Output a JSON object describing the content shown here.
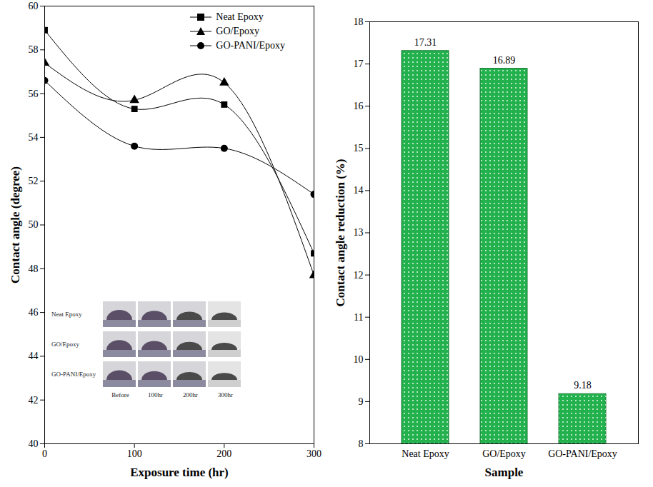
{
  "chart_data": [
    {
      "type": "line",
      "x_label": "Exposure time (hr)",
      "y_label": "Contact angle (degree)",
      "x": [
        0,
        100,
        200,
        300
      ],
      "series": [
        {
          "name": "Neat Epoxy",
          "color": "#000000",
          "marker": "square",
          "line_style": "solid",
          "values": [
            58.9,
            55.3,
            55.5,
            48.7
          ]
        },
        {
          "name": "GO/Epoxy",
          "color": "#000000",
          "marker": "triangle",
          "line_style": "solid",
          "values": [
            57.4,
            55.7,
            56.5,
            47.7
          ]
        },
        {
          "name": "GO-PANI/Epoxy",
          "color": "#000000",
          "marker": "circle",
          "line_style": "solid",
          "values": [
            56.6,
            53.6,
            53.5,
            51.4
          ]
        }
      ],
      "xlim": [
        0,
        300
      ],
      "xticks": [
        0,
        100,
        200,
        300
      ],
      "ylim": [
        40,
        60
      ],
      "yticks": [
        40,
        42,
        44,
        46,
        48,
        50,
        52,
        54,
        56,
        58,
        60
      ],
      "grid": false,
      "legend": "upper right",
      "inset": {
        "rows": [
          "Neat Epoxy",
          "GO/Epoxy",
          "GO-PANI/Epoxy"
        ],
        "columns": [
          "Before",
          "100hr",
          "200hr",
          "300hr"
        ]
      }
    },
    {
      "type": "bar",
      "x_label": "Sample",
      "y_label": "Contact angle reduction (%)",
      "categories": [
        "Neat Epoxy",
        "GO/Epoxy",
        "GO-PANI/Epoxy"
      ],
      "values": [
        17.31,
        16.89,
        9.18
      ],
      "color": "#22b14c",
      "ylim": [
        8,
        18
      ],
      "yticks": [
        8,
        9,
        10,
        11,
        12,
        13,
        14,
        15,
        16,
        17,
        18
      ],
      "grid": false,
      "data_labels": true
    }
  ]
}
